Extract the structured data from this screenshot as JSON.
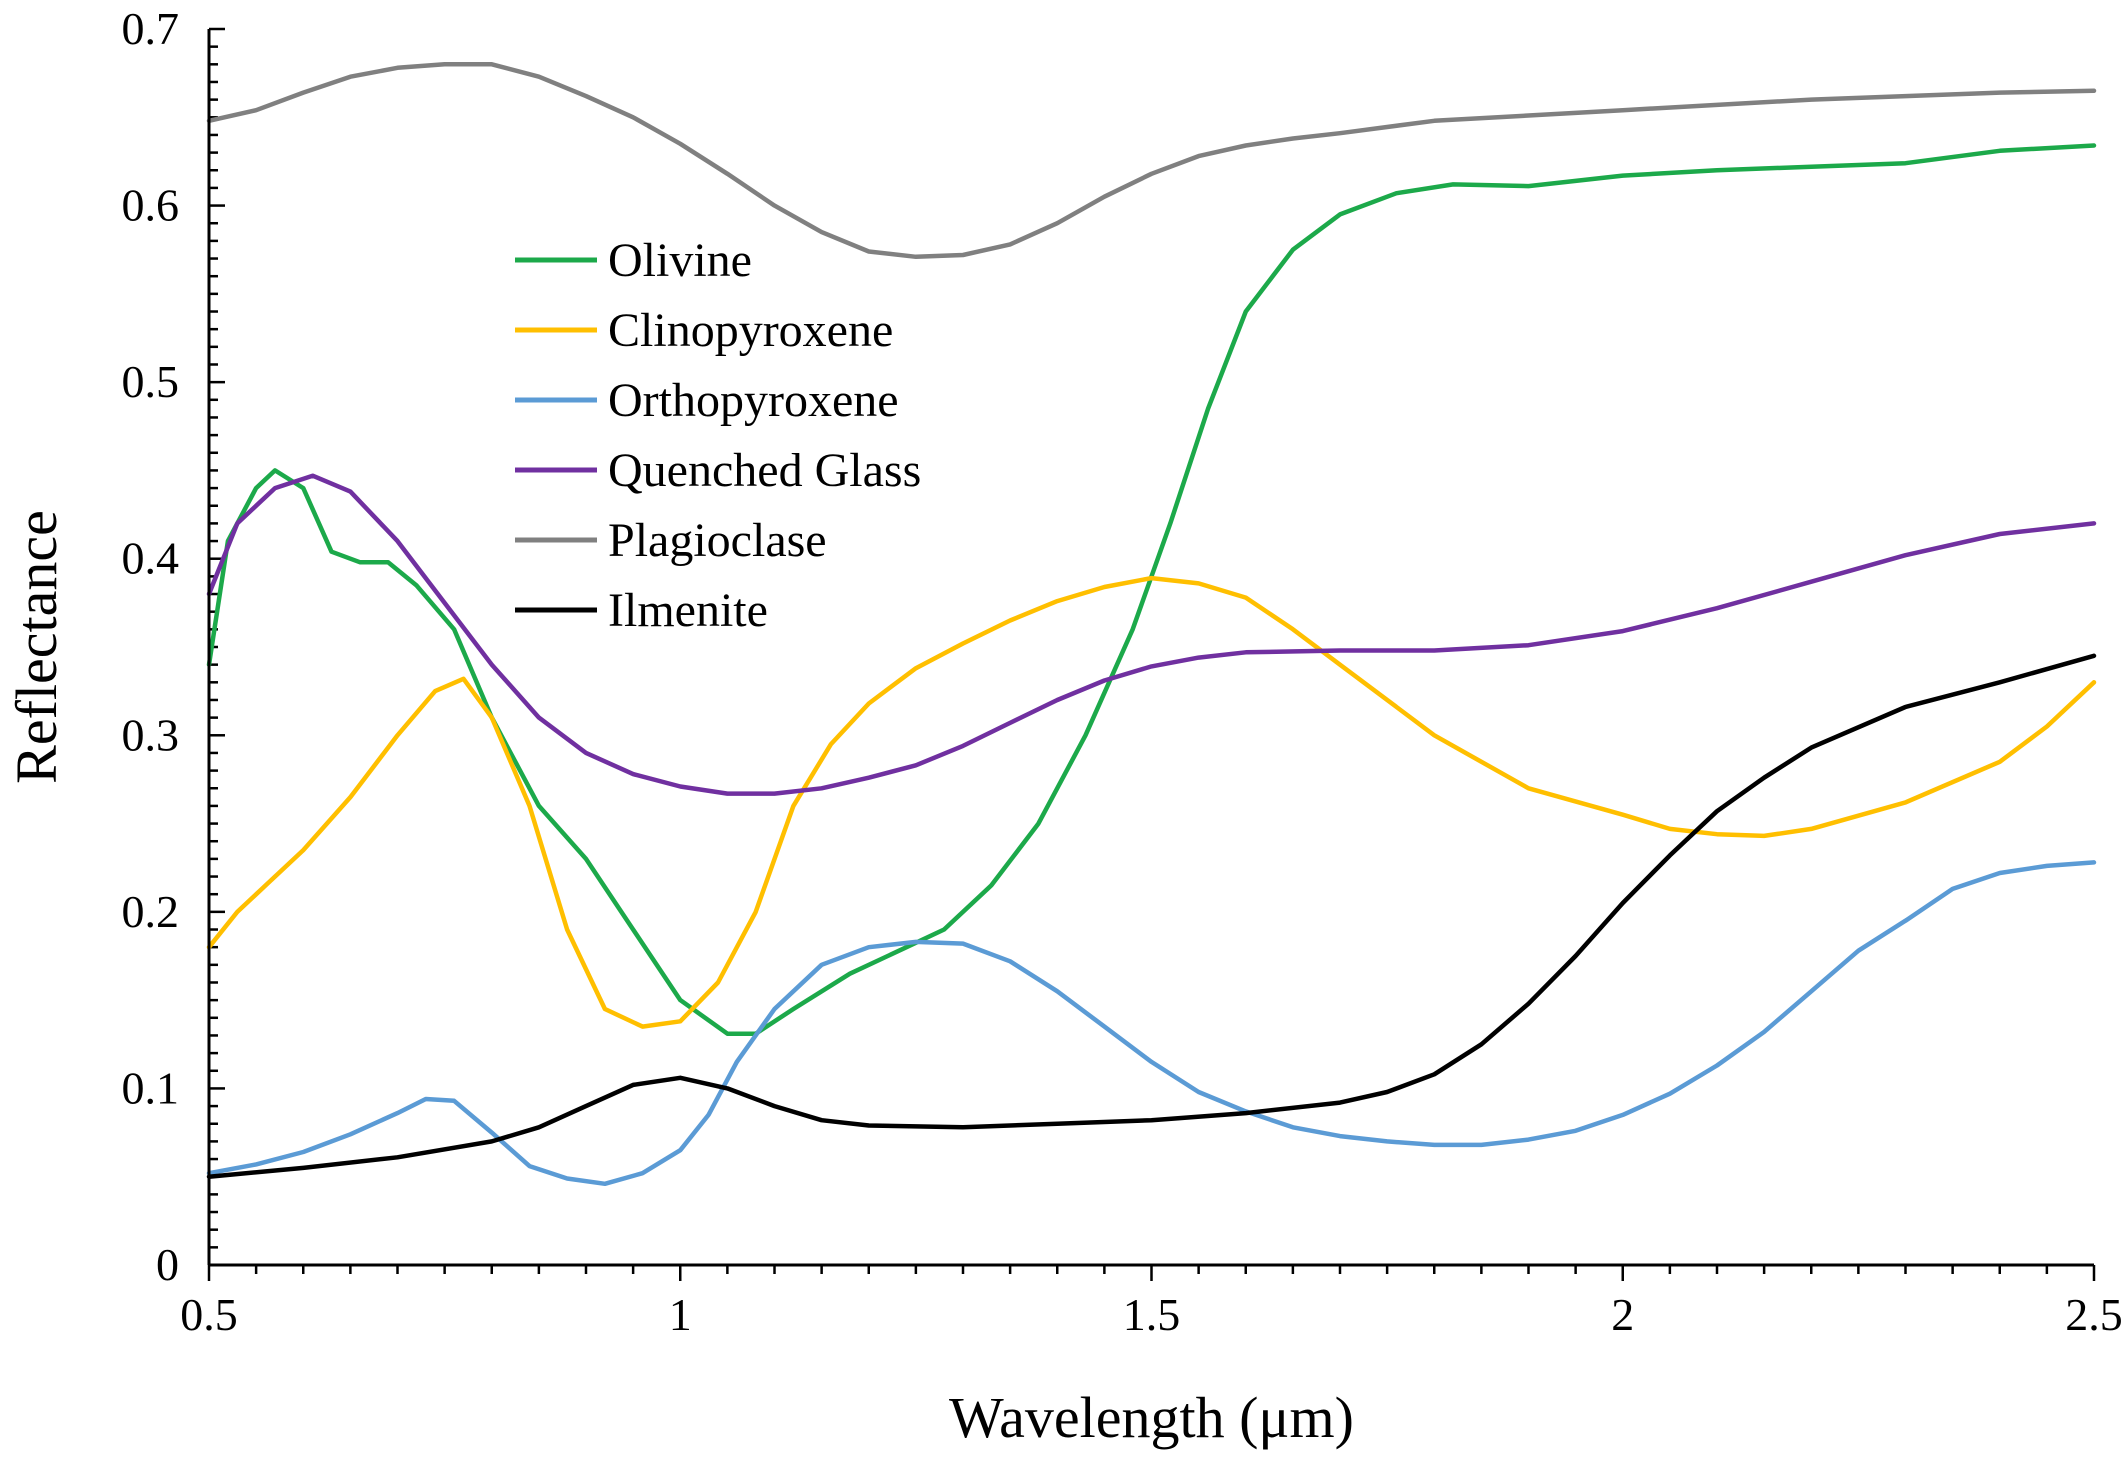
{
  "chart_data": {
    "type": "line",
    "title": "",
    "xlabel": "Wavelength  (μm)",
    "ylabel": "Reflectance",
    "xlim": [
      0.5,
      2.5
    ],
    "ylim": [
      0,
      0.7
    ],
    "x_ticks": [
      0.5,
      1,
      1.5,
      2,
      2.5
    ],
    "x_tick_labels": [
      "0.5",
      "1",
      "1.5",
      "2",
      "2.5"
    ],
    "y_ticks": [
      0,
      0.1,
      0.2,
      0.3,
      0.4,
      0.5,
      0.6,
      0.7
    ],
    "y_tick_labels": [
      "0",
      "0.1",
      "0.2",
      "0.3",
      "0.4",
      "0.5",
      "0.6",
      "0.7"
    ],
    "grid": false,
    "legend_position": "upper-left inside plot",
    "series": [
      {
        "name": "Olivine",
        "color": "#1ca94a",
        "points": [
          [
            0.5,
            0.34
          ],
          [
            0.52,
            0.41
          ],
          [
            0.55,
            0.44
          ],
          [
            0.57,
            0.45
          ],
          [
            0.6,
            0.44
          ],
          [
            0.63,
            0.404
          ],
          [
            0.66,
            0.398
          ],
          [
            0.69,
            0.398
          ],
          [
            0.72,
            0.385
          ],
          [
            0.76,
            0.36
          ],
          [
            0.8,
            0.31
          ],
          [
            0.85,
            0.26
          ],
          [
            0.9,
            0.23
          ],
          [
            0.95,
            0.19
          ],
          [
            1.0,
            0.15
          ],
          [
            1.05,
            0.131
          ],
          [
            1.08,
            0.131
          ],
          [
            1.12,
            0.145
          ],
          [
            1.18,
            0.165
          ],
          [
            1.24,
            0.18
          ],
          [
            1.28,
            0.19
          ],
          [
            1.33,
            0.215
          ],
          [
            1.38,
            0.25
          ],
          [
            1.43,
            0.3
          ],
          [
            1.48,
            0.36
          ],
          [
            1.52,
            0.42
          ],
          [
            1.56,
            0.485
          ],
          [
            1.6,
            0.54
          ],
          [
            1.65,
            0.575
          ],
          [
            1.7,
            0.595
          ],
          [
            1.76,
            0.607
          ],
          [
            1.82,
            0.612
          ],
          [
            1.9,
            0.611
          ],
          [
            2.0,
            0.617
          ],
          [
            2.1,
            0.62
          ],
          [
            2.2,
            0.622
          ],
          [
            2.3,
            0.624
          ],
          [
            2.4,
            0.631
          ],
          [
            2.5,
            0.634
          ]
        ]
      },
      {
        "name": "Clinopyroxene",
        "color": "#ffbf00",
        "points": [
          [
            0.5,
            0.18
          ],
          [
            0.53,
            0.2
          ],
          [
            0.56,
            0.215
          ],
          [
            0.6,
            0.235
          ],
          [
            0.65,
            0.265
          ],
          [
            0.7,
            0.3
          ],
          [
            0.74,
            0.325
          ],
          [
            0.77,
            0.332
          ],
          [
            0.8,
            0.31
          ],
          [
            0.84,
            0.26
          ],
          [
            0.88,
            0.19
          ],
          [
            0.92,
            0.145
          ],
          [
            0.96,
            0.135
          ],
          [
            1.0,
            0.138
          ],
          [
            1.04,
            0.16
          ],
          [
            1.08,
            0.2
          ],
          [
            1.12,
            0.26
          ],
          [
            1.16,
            0.295
          ],
          [
            1.2,
            0.318
          ],
          [
            1.25,
            0.338
          ],
          [
            1.3,
            0.352
          ],
          [
            1.35,
            0.365
          ],
          [
            1.4,
            0.376
          ],
          [
            1.45,
            0.384
          ],
          [
            1.5,
            0.389
          ],
          [
            1.55,
            0.386
          ],
          [
            1.6,
            0.378
          ],
          [
            1.65,
            0.36
          ],
          [
            1.7,
            0.34
          ],
          [
            1.8,
            0.3
          ],
          [
            1.9,
            0.27
          ],
          [
            2.0,
            0.255
          ],
          [
            2.05,
            0.247
          ],
          [
            2.1,
            0.244
          ],
          [
            2.15,
            0.243
          ],
          [
            2.2,
            0.247
          ],
          [
            2.3,
            0.262
          ],
          [
            2.4,
            0.285
          ],
          [
            2.45,
            0.305
          ],
          [
            2.5,
            0.33
          ]
        ]
      },
      {
        "name": "Orthopyroxene",
        "color": "#5b9bd5",
        "points": [
          [
            0.5,
            0.052
          ],
          [
            0.55,
            0.057
          ],
          [
            0.6,
            0.064
          ],
          [
            0.65,
            0.074
          ],
          [
            0.7,
            0.086
          ],
          [
            0.73,
            0.094
          ],
          [
            0.76,
            0.093
          ],
          [
            0.8,
            0.075
          ],
          [
            0.84,
            0.056
          ],
          [
            0.88,
            0.049
          ],
          [
            0.92,
            0.046
          ],
          [
            0.96,
            0.052
          ],
          [
            1.0,
            0.065
          ],
          [
            1.03,
            0.085
          ],
          [
            1.06,
            0.115
          ],
          [
            1.1,
            0.145
          ],
          [
            1.15,
            0.17
          ],
          [
            1.2,
            0.18
          ],
          [
            1.25,
            0.183
          ],
          [
            1.3,
            0.182
          ],
          [
            1.35,
            0.172
          ],
          [
            1.4,
            0.155
          ],
          [
            1.45,
            0.135
          ],
          [
            1.5,
            0.115
          ],
          [
            1.55,
            0.098
          ],
          [
            1.6,
            0.087
          ],
          [
            1.65,
            0.078
          ],
          [
            1.7,
            0.073
          ],
          [
            1.75,
            0.07
          ],
          [
            1.8,
            0.068
          ],
          [
            1.85,
            0.068
          ],
          [
            1.9,
            0.071
          ],
          [
            1.95,
            0.076
          ],
          [
            2.0,
            0.085
          ],
          [
            2.05,
            0.097
          ],
          [
            2.1,
            0.113
          ],
          [
            2.15,
            0.132
          ],
          [
            2.2,
            0.155
          ],
          [
            2.25,
            0.178
          ],
          [
            2.3,
            0.195
          ],
          [
            2.35,
            0.213
          ],
          [
            2.4,
            0.222
          ],
          [
            2.45,
            0.226
          ],
          [
            2.5,
            0.228
          ]
        ]
      },
      {
        "name": "Quenched Glass",
        "color": "#7030a0",
        "points": [
          [
            0.5,
            0.38
          ],
          [
            0.53,
            0.42
          ],
          [
            0.57,
            0.44
          ],
          [
            0.61,
            0.447
          ],
          [
            0.65,
            0.438
          ],
          [
            0.7,
            0.41
          ],
          [
            0.75,
            0.375
          ],
          [
            0.8,
            0.34
          ],
          [
            0.85,
            0.31
          ],
          [
            0.9,
            0.29
          ],
          [
            0.95,
            0.278
          ],
          [
            1.0,
            0.271
          ],
          [
            1.05,
            0.267
          ],
          [
            1.1,
            0.267
          ],
          [
            1.15,
            0.27
          ],
          [
            1.2,
            0.276
          ],
          [
            1.25,
            0.283
          ],
          [
            1.3,
            0.294
          ],
          [
            1.35,
            0.307
          ],
          [
            1.4,
            0.32
          ],
          [
            1.45,
            0.331
          ],
          [
            1.5,
            0.339
          ],
          [
            1.55,
            0.344
          ],
          [
            1.6,
            0.347
          ],
          [
            1.7,
            0.348
          ],
          [
            1.8,
            0.348
          ],
          [
            1.9,
            0.351
          ],
          [
            2.0,
            0.359
          ],
          [
            2.1,
            0.372
          ],
          [
            2.2,
            0.387
          ],
          [
            2.3,
            0.402
          ],
          [
            2.4,
            0.414
          ],
          [
            2.5,
            0.42
          ]
        ]
      },
      {
        "name": "Plagioclase",
        "color": "#808080",
        "points": [
          [
            0.5,
            0.648
          ],
          [
            0.55,
            0.654
          ],
          [
            0.6,
            0.664
          ],
          [
            0.65,
            0.673
          ],
          [
            0.7,
            0.678
          ],
          [
            0.75,
            0.68
          ],
          [
            0.8,
            0.68
          ],
          [
            0.85,
            0.673
          ],
          [
            0.9,
            0.662
          ],
          [
            0.95,
            0.65
          ],
          [
            1.0,
            0.635
          ],
          [
            1.05,
            0.618
          ],
          [
            1.1,
            0.6
          ],
          [
            1.15,
            0.585
          ],
          [
            1.2,
            0.574
          ],
          [
            1.25,
            0.571
          ],
          [
            1.3,
            0.572
          ],
          [
            1.35,
            0.578
          ],
          [
            1.4,
            0.59
          ],
          [
            1.45,
            0.605
          ],
          [
            1.5,
            0.618
          ],
          [
            1.55,
            0.628
          ],
          [
            1.6,
            0.634
          ],
          [
            1.65,
            0.638
          ],
          [
            1.7,
            0.641
          ],
          [
            1.8,
            0.648
          ],
          [
            1.9,
            0.651
          ],
          [
            2.0,
            0.654
          ],
          [
            2.1,
            0.657
          ],
          [
            2.2,
            0.66
          ],
          [
            2.3,
            0.662
          ],
          [
            2.4,
            0.664
          ],
          [
            2.5,
            0.665
          ]
        ]
      },
      {
        "name": "Ilmenite",
        "color": "#000000",
        "points": [
          [
            0.5,
            0.05
          ],
          [
            0.6,
            0.055
          ],
          [
            0.7,
            0.061
          ],
          [
            0.8,
            0.07
          ],
          [
            0.85,
            0.078
          ],
          [
            0.9,
            0.09
          ],
          [
            0.95,
            0.102
          ],
          [
            1.0,
            0.106
          ],
          [
            1.05,
            0.1
          ],
          [
            1.1,
            0.09
          ],
          [
            1.15,
            0.082
          ],
          [
            1.2,
            0.079
          ],
          [
            1.3,
            0.078
          ],
          [
            1.4,
            0.08
          ],
          [
            1.5,
            0.082
          ],
          [
            1.6,
            0.086
          ],
          [
            1.7,
            0.092
          ],
          [
            1.75,
            0.098
          ],
          [
            1.8,
            0.108
          ],
          [
            1.85,
            0.125
          ],
          [
            1.9,
            0.148
          ],
          [
            1.95,
            0.175
          ],
          [
            2.0,
            0.205
          ],
          [
            2.05,
            0.232
          ],
          [
            2.1,
            0.257
          ],
          [
            2.15,
            0.276
          ],
          [
            2.2,
            0.293
          ],
          [
            2.3,
            0.316
          ],
          [
            2.4,
            0.33
          ],
          [
            2.5,
            0.345
          ]
        ]
      }
    ]
  }
}
